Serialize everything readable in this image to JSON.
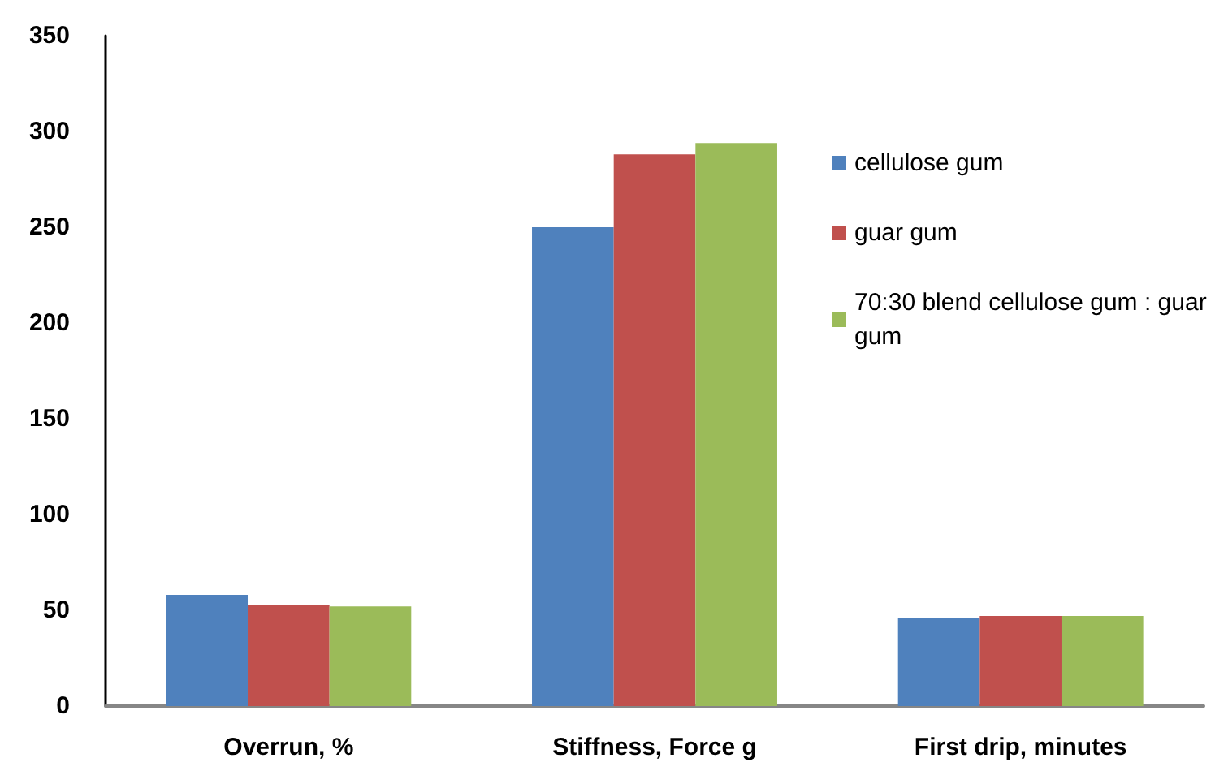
{
  "chart_data": {
    "type": "bar",
    "categories": [
      "Overrun, %",
      "Stiffness, Force g",
      "First drip, minutes"
    ],
    "series": [
      {
        "name": "cellulose gum",
        "color": "#4f81bd",
        "values": [
          58,
          250,
          46
        ]
      },
      {
        "name": "guar gum",
        "color": "#c0504d",
        "values": [
          53,
          288,
          47
        ]
      },
      {
        "name": "70:30 blend cellulose gum : guar gum",
        "color": "#9bbb59",
        "values": [
          52,
          294,
          47
        ]
      }
    ],
    "ylim": [
      0,
      350
    ],
    "yticks": [
      0,
      50,
      100,
      150,
      200,
      250,
      300,
      350
    ],
    "grid": false,
    "legend": "right"
  }
}
